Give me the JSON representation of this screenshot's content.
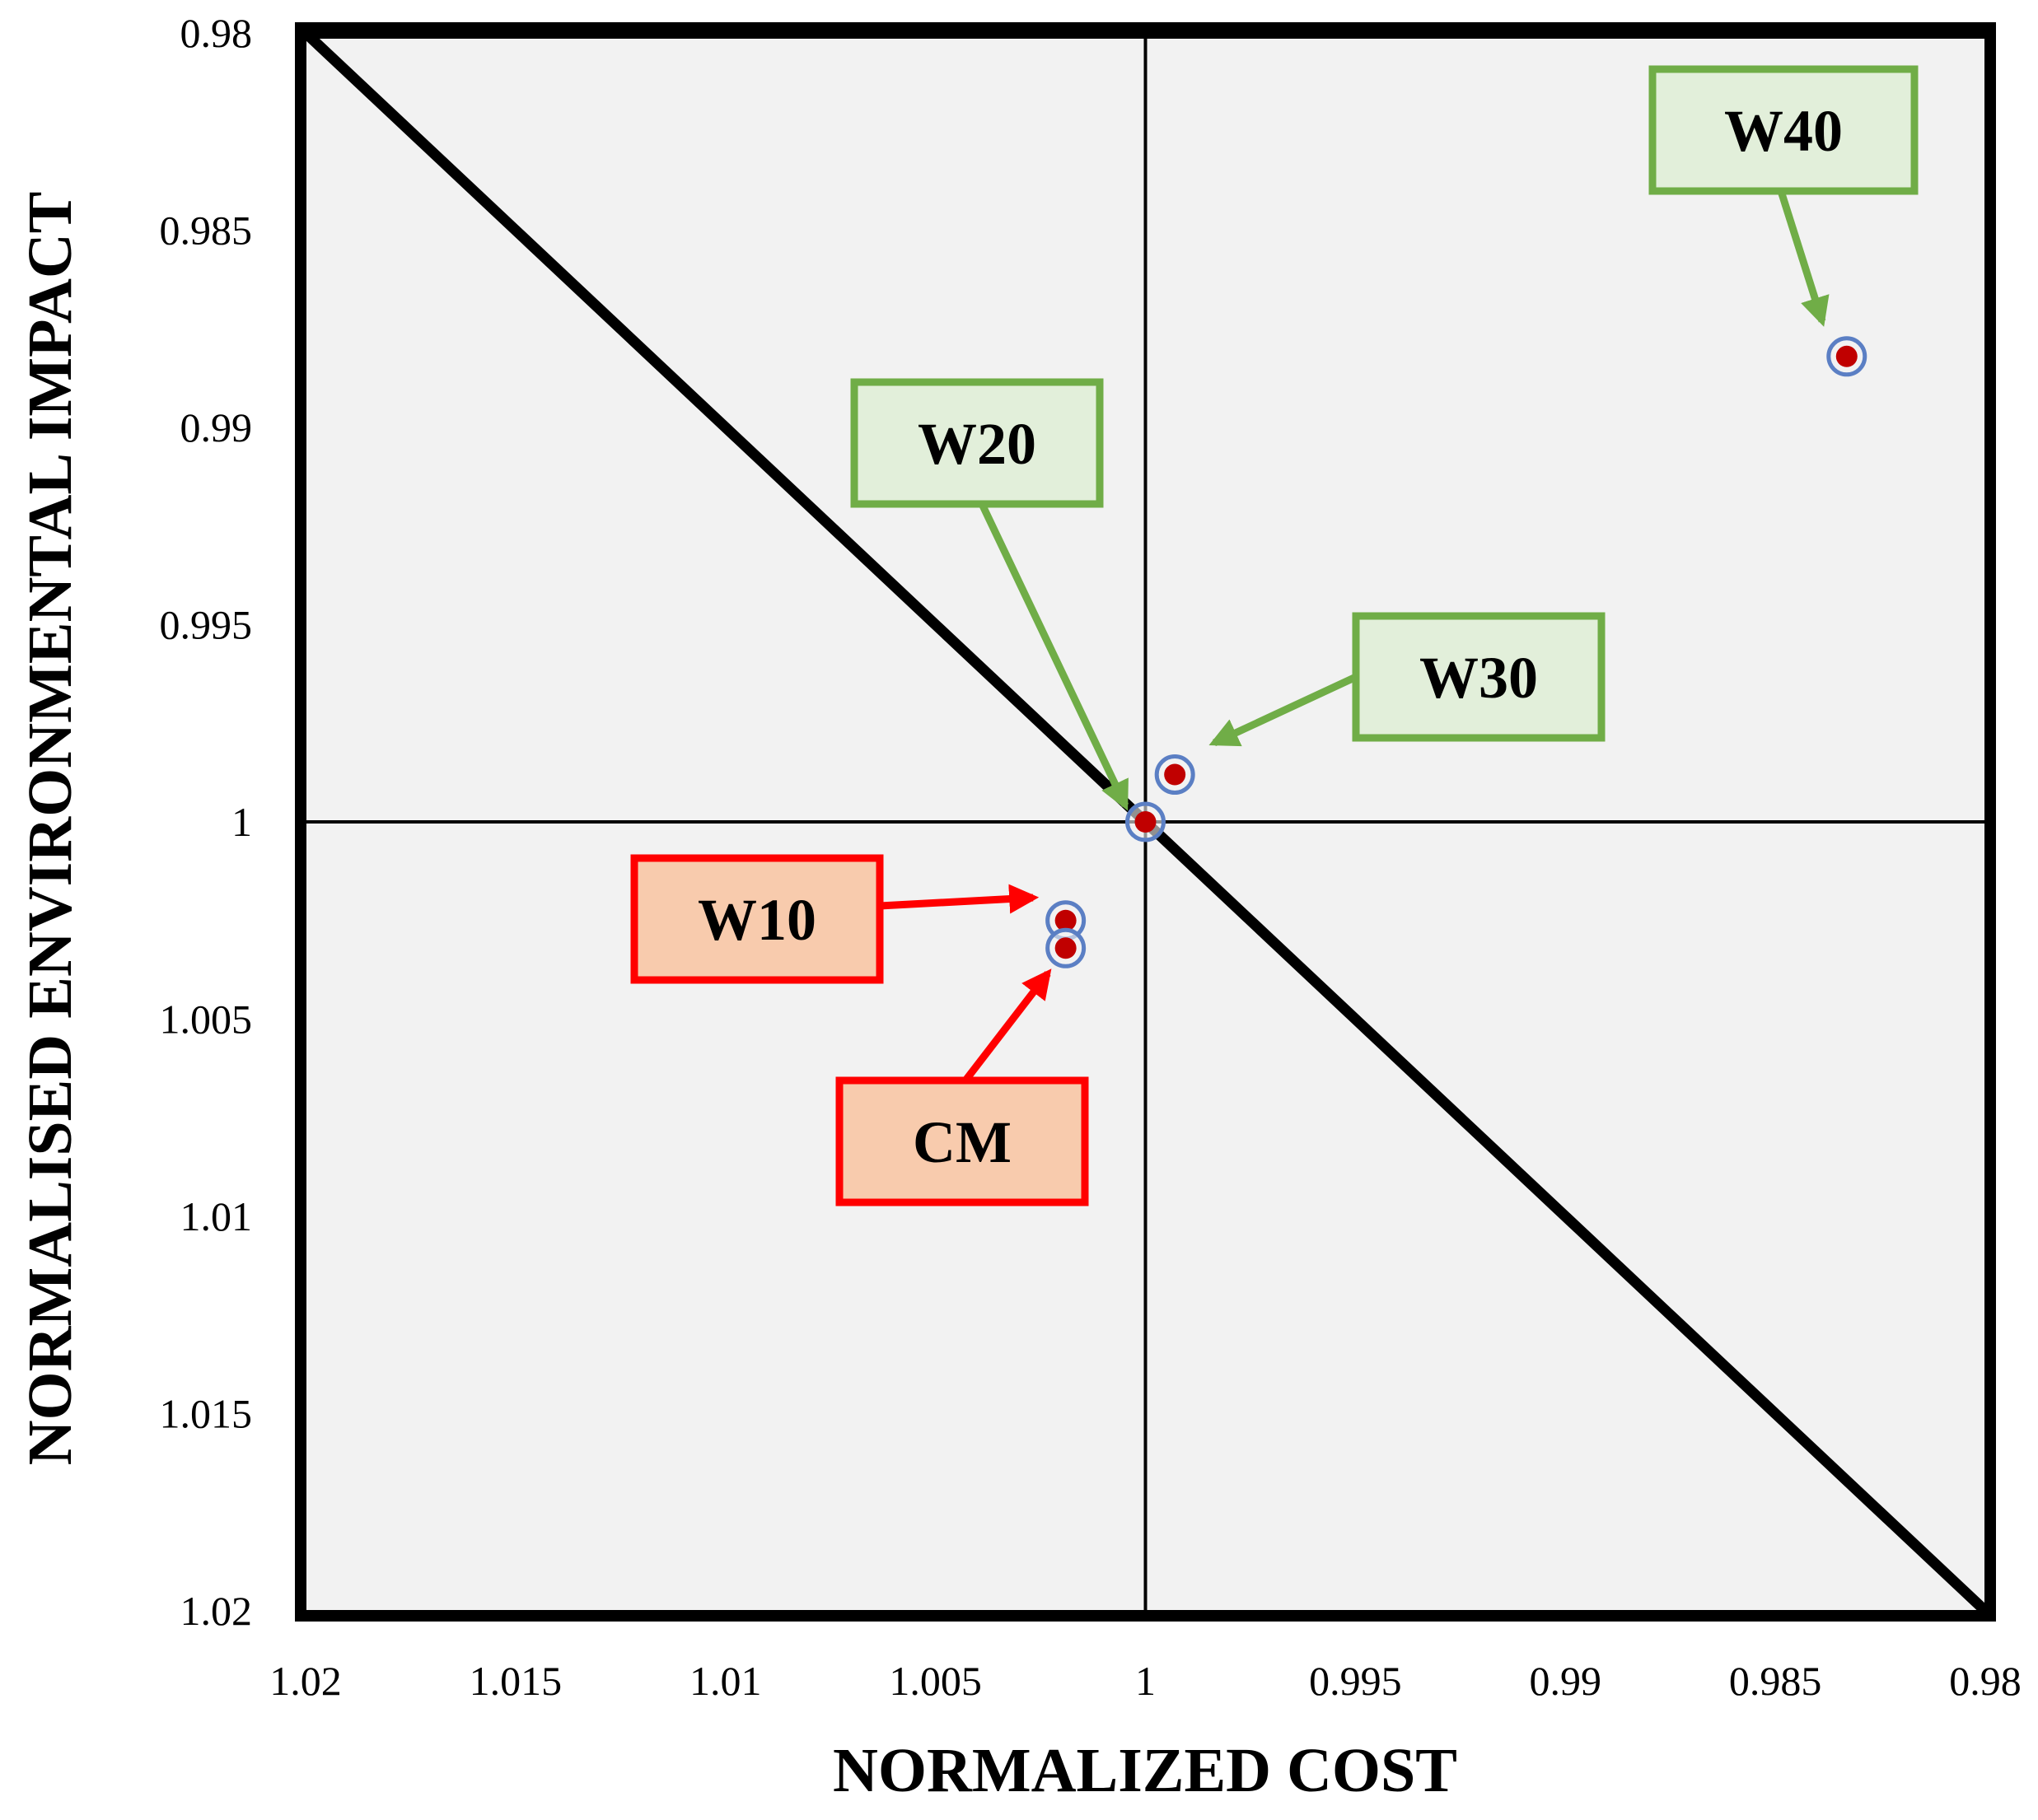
{
  "chart_data": {
    "type": "scatter",
    "title": "",
    "xlabel": "NORMALIZED COST",
    "ylabel": "NORMALISED ENVIRONMENTAL IMPACT",
    "xlim": [
      1.02,
      0.98
    ],
    "ylim": [
      0.98,
      1.02
    ],
    "x_reversed": true,
    "y_reversed": true,
    "x_ticks": [
      "1.02",
      "1.015",
      "1.01",
      "1.005",
      "1",
      "0.995",
      "0.99",
      "0.985",
      "0.98"
    ],
    "y_ticks": [
      "0.98",
      "0.985",
      "0.99",
      "0.995",
      "1",
      "1.005",
      "1.01",
      "1.015",
      "1.02"
    ],
    "x_tick_values": [
      1.02,
      1.015,
      1.01,
      1.005,
      1.0,
      0.995,
      0.99,
      0.985,
      0.98
    ],
    "y_tick_values": [
      0.98,
      0.985,
      0.99,
      0.995,
      1.0,
      1.005,
      1.01,
      1.015,
      1.02
    ],
    "reference_lines": {
      "vertical_x": 1.0,
      "horizontal_y": 1.0,
      "diagonal": [
        [
          1.02,
          0.98
        ],
        [
          0.98,
          1.02
        ]
      ]
    },
    "grid": false,
    "plot_background": "#f2f2f2",
    "point_fill": "#c00000",
    "point_ring": "#5b7fc4",
    "points": [
      {
        "id": "base",
        "x": 1.0,
        "y": 1.0
      },
      {
        "id": "w10",
        "x": 1.0019,
        "y": 1.0025
      },
      {
        "id": "cm",
        "x": 1.0019,
        "y": 1.0032
      },
      {
        "id": "w30",
        "x": 0.9993,
        "y": 0.9988
      },
      {
        "id": "w40",
        "x": 0.9833,
        "y": 0.9882
      }
    ],
    "annotations": [
      {
        "id": "w40",
        "text": "W40",
        "color": "#70ad47",
        "fill": "#e2efda",
        "target": "w40"
      },
      {
        "id": "w20",
        "text": "W20",
        "color": "#70ad47",
        "fill": "#e2efda",
        "target": "base"
      },
      {
        "id": "w30",
        "text": "W30",
        "color": "#70ad47",
        "fill": "#e2efda",
        "target": "w30"
      },
      {
        "id": "w10",
        "text": "W10",
        "color": "#ff0000",
        "fill": "#f8cbad",
        "target": "w10"
      },
      {
        "id": "cm",
        "text": "CM",
        "color": "#ff0000",
        "fill": "#f8cbad",
        "target": "cm"
      }
    ]
  }
}
